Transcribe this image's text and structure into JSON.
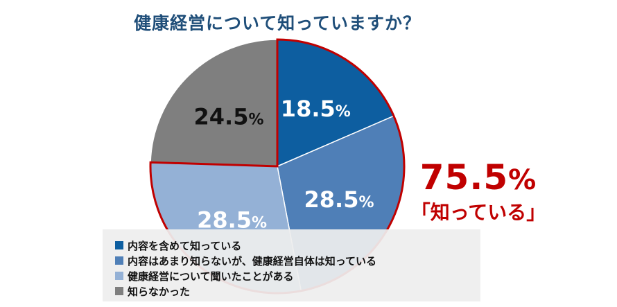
{
  "chart_data": {
    "type": "pie",
    "title": "健康経営について知っていますか？",
    "categories": [
      "内容を含めて知っている",
      "内容はあまり知らないが、健康経営自体は知っている",
      "健康経営について聞いたことがある",
      "知らなかった"
    ],
    "values": [
      18.5,
      28.5,
      28.5,
      24.5
    ],
    "value_labels": [
      "18.5%",
      "28.5%",
      "28.5%",
      "24.5%"
    ],
    "colors": [
      "#0d5ea0",
      "#4f7fb7",
      "#94b1d6",
      "#7f7f7f"
    ],
    "label_colors": [
      "#ffffff",
      "#ffffff",
      "#ffffff",
      "#111111"
    ],
    "highlight_outline_color": "#c00000",
    "legend_position": "bottom-left"
  },
  "callout": {
    "value": "75.5",
    "unit": "%",
    "label": "「知っている」"
  }
}
